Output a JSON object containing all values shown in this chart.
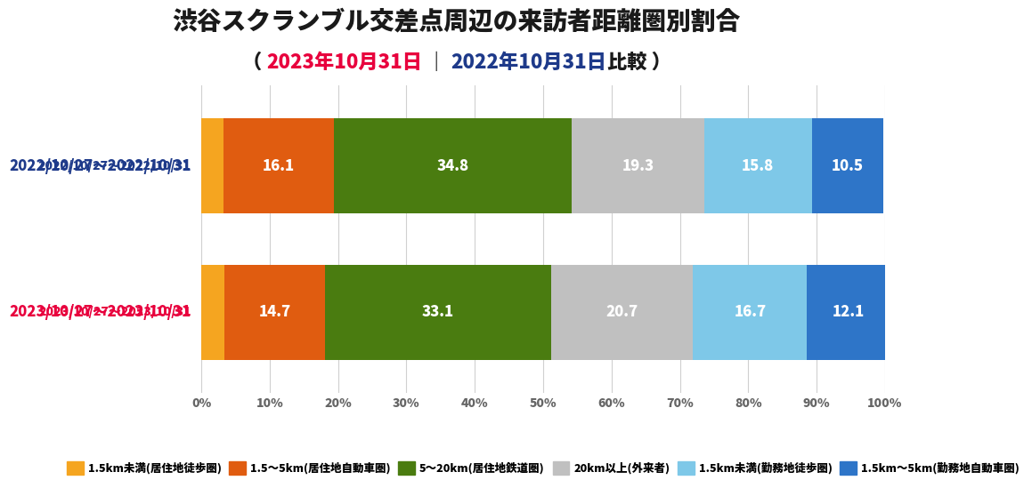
{
  "title_line1": "渋谷スクランブル交差点周辺の来訪者距離圏別割合",
  "title_line2_parts": [
    {
      "text": "（ ",
      "color": "#1a1a1a",
      "bold": false
    },
    {
      "text": "2023年10月31日",
      "color": "#e8003d",
      "bold": true
    },
    {
      "text": " ｜ ",
      "color": "#1a1a1a",
      "bold": false
    },
    {
      "text": "2022年10月31日",
      "color": "#1e3a8a",
      "bold": true
    },
    {
      "text": "比較 ）",
      "color": "#1a1a1a",
      "bold": false
    }
  ],
  "rows": [
    {
      "label": "2022/10/27～2022/10/31",
      "label_color": "#1e3a8a",
      "values": [
        3.3,
        16.1,
        34.8,
        19.3,
        15.8,
        10.5
      ],
      "bar_labels": [
        "",
        "16.1",
        "34.8",
        "19.3",
        "15.8",
        "10.5"
      ]
    },
    {
      "label": "2023/10/27～2023/10/31",
      "label_color": "#e8003d",
      "values": [
        3.4,
        14.7,
        33.1,
        20.7,
        16.7,
        12.1
      ],
      "bar_labels": [
        "",
        "14.7",
        "33.1",
        "20.7",
        "16.7",
        "12.1"
      ]
    }
  ],
  "colors": [
    "#f5a520",
    "#e05c10",
    "#4a7c10",
    "#c0c0c0",
    "#7ec8e8",
    "#2e75c8"
  ],
  "legend_labels": [
    "1.5km未満(居住地徒歩圏)",
    "1.5～5km(居住地自動車圏)",
    "5～20km(居住地鉄道圏)",
    "20km以上(外来者)",
    "1.5km未満(勤務地徒歩圏)",
    "1.5km～5km(勤務地自動車圏)"
  ],
  "background_color": "#ffffff",
  "grid_color": "#d0d0d0",
  "title1_fontsize": 20,
  "title2_fontsize": 16,
  "label_fontsize": 12,
  "bar_label_fontsize": 12,
  "tick_fontsize": 10,
  "legend_fontsize": 9,
  "bar_height": 0.65
}
